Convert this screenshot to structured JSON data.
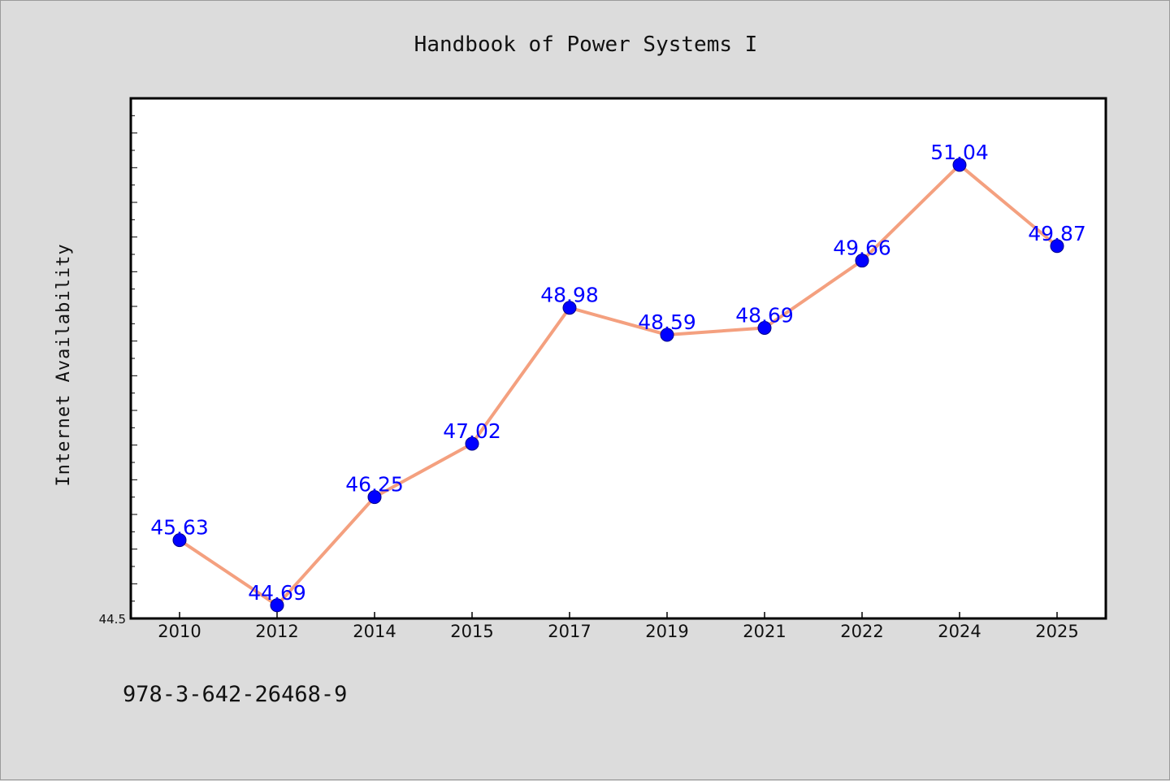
{
  "chart_data": {
    "type": "line",
    "title": "Handbook of Power Systems I",
    "ylabel": "Internet Availability",
    "xlabel": "",
    "categories": [
      "2010",
      "2012",
      "2014",
      "2015",
      "2017",
      "2019",
      "2021",
      "2022",
      "2024",
      "2025"
    ],
    "series": [
      {
        "values": [
          45.63,
          44.69,
          46.25,
          47.02,
          48.98,
          48.59,
          48.69,
          49.66,
          51.04,
          49.87
        ],
        "data_labels": [
          "45.63",
          "44.69",
          "46.25",
          "47.02",
          "48.98",
          "48.59",
          "48.69",
          "49.66",
          "51.04",
          "49.87"
        ]
      }
    ],
    "ylim": [
      44.5,
      52.0
    ],
    "y_tick_labels": [
      "44.5"
    ],
    "grid": false,
    "legend": "none",
    "line_color": "#f4a07f",
    "marker_color": "#0000ff",
    "label_color": "#0000ff"
  },
  "footer": {
    "isbn": "978-3-642-26468-9"
  }
}
